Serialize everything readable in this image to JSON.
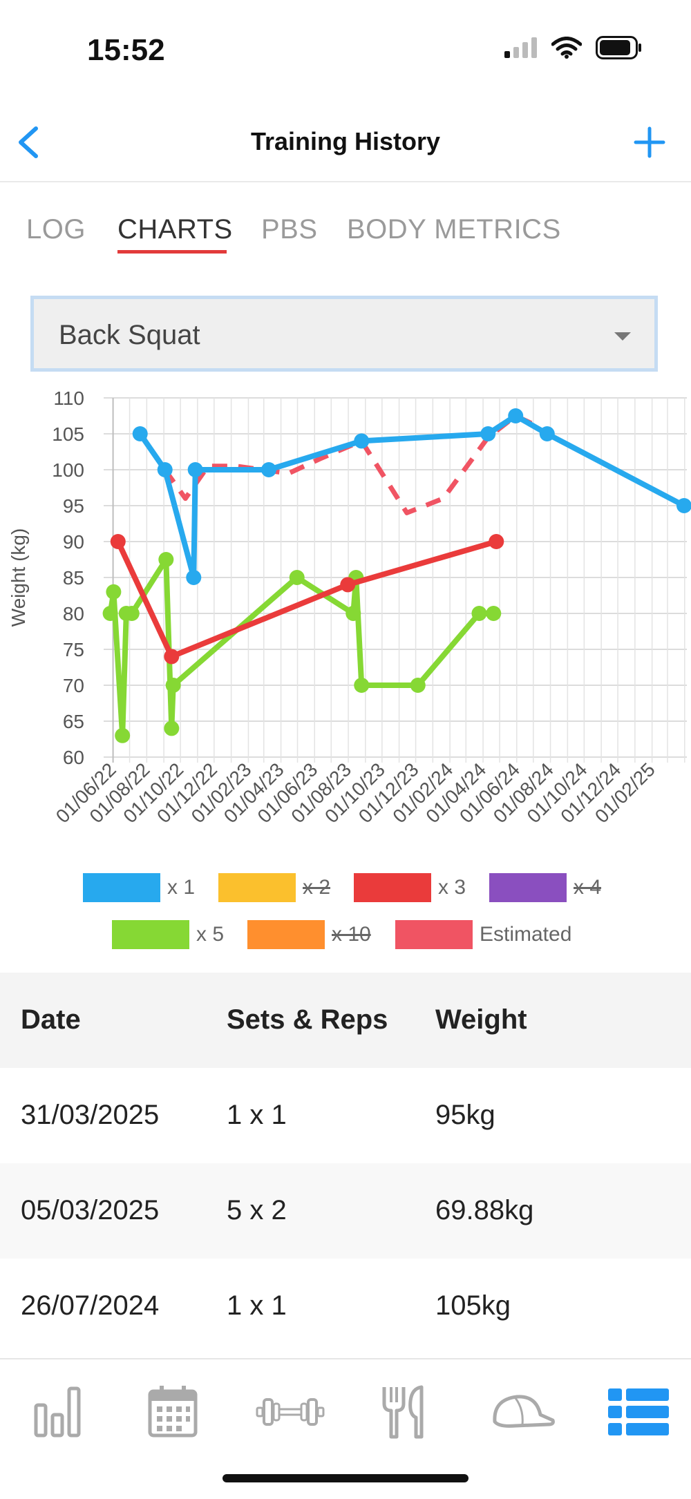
{
  "status_bar": {
    "time": "15:52"
  },
  "header": {
    "title": "Training History"
  },
  "tabs": [
    {
      "label": "LOG",
      "active": false
    },
    {
      "label": "CHARTS",
      "active": true
    },
    {
      "label": "PBS",
      "active": false
    },
    {
      "label": "BODY METRICS",
      "active": false
    }
  ],
  "exercise_select": {
    "value": "Back Squat"
  },
  "colors": {
    "accent": "#2196f3",
    "x1": "#27a9ee",
    "x2": "#fbc02d",
    "x3": "#ea3b3b",
    "x4": "#8a4fbf",
    "x5": "#86d834",
    "x10": "#ff8f2e",
    "estimated": "#f05463"
  },
  "chart_data": {
    "type": "line",
    "ylabel": "Weight (kg)",
    "ylim": [
      60,
      110
    ],
    "yticks": [
      110,
      105,
      100,
      95,
      90,
      85,
      80,
      75,
      70,
      65,
      60
    ],
    "xlim": [
      "2022-05-25",
      "2025-04-05"
    ],
    "xticks": [
      "01/06/22",
      "01/08/22",
      "01/10/22",
      "01/12/22",
      "01/02/23",
      "01/04/23",
      "01/06/23",
      "01/08/23",
      "01/10/23",
      "01/12/23",
      "01/02/24",
      "01/04/24",
      "01/06/24",
      "01/08/24",
      "01/10/24",
      "01/12/24",
      "01/02/25"
    ],
    "series": [
      {
        "name": "x 1",
        "color": "#27a9ee",
        "visible": true,
        "points": [
          [
            "2022-07-20",
            105
          ],
          [
            "2022-09-03",
            100
          ],
          [
            "2022-10-25",
            85
          ],
          [
            "2022-10-28",
            100
          ],
          [
            "2023-03-10",
            100
          ],
          [
            "2023-08-25",
            104
          ],
          [
            "2024-04-10",
            105
          ],
          [
            "2024-05-30",
            107.5
          ],
          [
            "2024-07-26",
            105
          ],
          [
            "2025-03-31",
            95
          ]
        ]
      },
      {
        "name": "x 2",
        "color": "#fbc02d",
        "visible": false,
        "points": []
      },
      {
        "name": "x 3",
        "color": "#ea3b3b",
        "visible": true,
        "points": [
          [
            "2022-06-10",
            90
          ],
          [
            "2022-09-15",
            74
          ],
          [
            "2023-07-31",
            84
          ],
          [
            "2024-04-25",
            90
          ]
        ]
      },
      {
        "name": "x 4",
        "color": "#8a4fbf",
        "visible": false,
        "points": []
      },
      {
        "name": "x 5",
        "color": "#86d834",
        "visible": true,
        "points": [
          [
            "2022-05-27",
            80
          ],
          [
            "2022-06-02",
            83
          ],
          [
            "2022-06-18",
            63
          ],
          [
            "2022-06-25",
            80
          ],
          [
            "2022-07-05",
            80
          ],
          [
            "2022-09-05",
            87.5
          ],
          [
            "2022-09-15",
            64
          ],
          [
            "2022-09-18",
            70
          ],
          [
            "2023-04-30",
            85
          ],
          [
            "2023-08-10",
            80
          ],
          [
            "2023-08-15",
            85
          ],
          [
            "2023-08-25",
            70
          ],
          [
            "2023-12-05",
            70
          ],
          [
            "2024-03-25",
            80
          ],
          [
            "2024-04-20",
            80
          ]
        ]
      },
      {
        "name": "x 10",
        "color": "#ff8f2e",
        "visible": false,
        "points": []
      },
      {
        "name": "Estimated",
        "color": "#f05463",
        "visible": true,
        "dashed": true,
        "points": [
          [
            "2022-09-03",
            100
          ],
          [
            "2022-10-10",
            96
          ],
          [
            "2022-11-20",
            100.5
          ],
          [
            "2023-01-10",
            100.5
          ],
          [
            "2023-04-15",
            99.5
          ],
          [
            "2023-06-10",
            101.5
          ],
          [
            "2023-08-25",
            104
          ],
          [
            "2023-11-15",
            94
          ],
          [
            "2024-01-20",
            96
          ],
          [
            "2024-04-10",
            104.5
          ],
          [
            "2024-05-30",
            107.5
          ],
          [
            "2024-07-10",
            106
          ]
        ]
      }
    ]
  },
  "legend": [
    {
      "label": "x 1",
      "color": "#27a9ee",
      "struck": false
    },
    {
      "label": "x 2",
      "color": "#fbc02d",
      "struck": true
    },
    {
      "label": "x 3",
      "color": "#ea3b3b",
      "struck": false
    },
    {
      "label": "x 4",
      "color": "#8a4fbf",
      "struck": true
    },
    {
      "label": "x 5",
      "color": "#86d834",
      "struck": false
    },
    {
      "label": "x 10",
      "color": "#ff8f2e",
      "struck": true
    },
    {
      "label": "Estimated",
      "color": "#f05463",
      "struck": false
    }
  ],
  "table": {
    "headers": [
      "Date",
      "Sets & Reps",
      "Weight"
    ],
    "rows": [
      [
        "31/03/2025",
        "1 x 1",
        "95kg"
      ],
      [
        "05/03/2025",
        "5 x 2",
        "69.88kg"
      ],
      [
        "26/07/2024",
        "1 x 1",
        "105kg"
      ]
    ]
  },
  "bottom_nav": [
    {
      "icon": "bar-chart-icon",
      "active": false
    },
    {
      "icon": "calendar-icon",
      "active": false
    },
    {
      "icon": "dumbbell-icon",
      "active": false
    },
    {
      "icon": "fork-knife-icon",
      "active": false
    },
    {
      "icon": "cap-icon",
      "active": false
    },
    {
      "icon": "list-icon",
      "active": true
    }
  ]
}
